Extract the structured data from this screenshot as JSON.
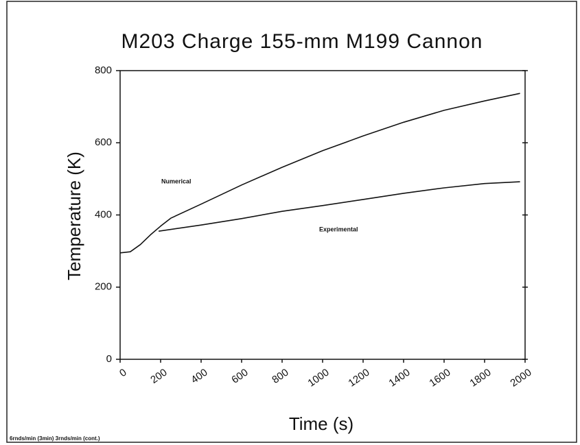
{
  "chart_data": {
    "type": "line",
    "title": "M203 Charge 155-mm M199 Cannon",
    "xlabel": "Time (s)",
    "ylabel": "Temperature (K)",
    "note": "6rnds/min (3min) 3rnds/min (cont.)",
    "xlim": [
      0,
      2000
    ],
    "xticks": [
      0,
      200,
      400,
      600,
      800,
      1000,
      1200,
      1400,
      1600,
      1800,
      2000
    ],
    "ylim": [
      0,
      800
    ],
    "yticks": [
      0,
      200,
      400,
      600,
      800
    ],
    "series": [
      {
        "name": "Numerical",
        "color": "#111111",
        "x": [
          0,
          50,
          100,
          150,
          200,
          250,
          400,
          600,
          800,
          1000,
          1200,
          1400,
          1600,
          1800,
          1975
        ],
        "values": [
          295,
          298,
          318,
          345,
          369,
          391,
          430,
          483,
          532,
          578,
          619,
          657,
          690,
          716,
          737
        ]
      },
      {
        "name": "Experimental",
        "color": "#111111",
        "x": [
          190,
          400,
          600,
          800,
          1000,
          1200,
          1400,
          1600,
          1800,
          1975
        ],
        "values": [
          355,
          372,
          390,
          410,
          426,
          443,
          460,
          475,
          487,
          492
        ]
      }
    ]
  }
}
